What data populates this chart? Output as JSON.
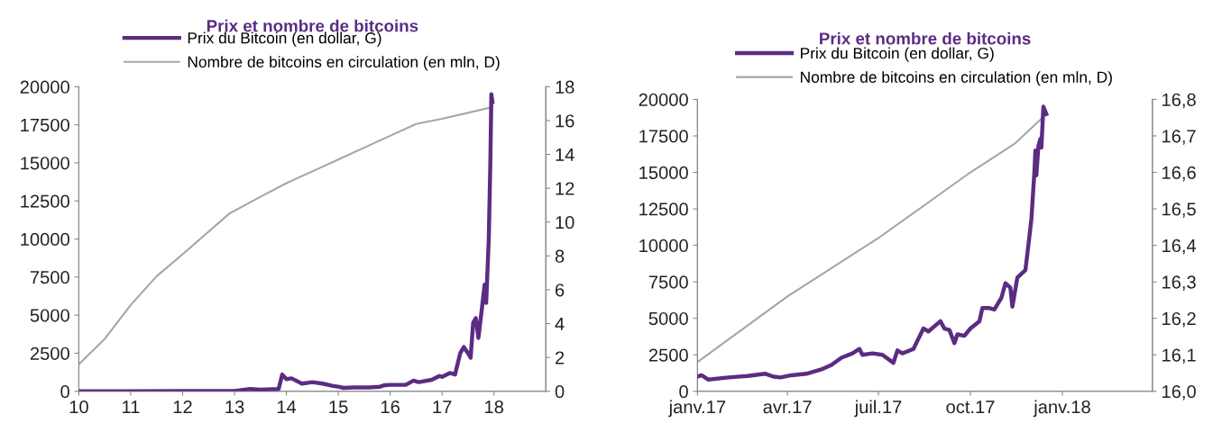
{
  "chart_data": [
    {
      "type": "line",
      "title": "Prix et nombre de bitcoins",
      "legend": "top",
      "grid": false,
      "xlim": [
        10,
        19
      ],
      "xticks": [
        10,
        11,
        12,
        13,
        14,
        15,
        16,
        17,
        18
      ],
      "ylim": [
        0,
        20000
      ],
      "yticks": [
        0,
        2500,
        5000,
        7500,
        10000,
        12500,
        15000,
        17500,
        20000
      ],
      "y2lim": [
        0,
        18
      ],
      "y2ticks": [
        0,
        2,
        4,
        6,
        8,
        10,
        12,
        14,
        16,
        18
      ],
      "series": [
        {
          "name": "Prix du Bitcoin (en dollar, G)",
          "color": "#5b2c83",
          "x": [
            10,
            11,
            12,
            13.0,
            13.3,
            13.5,
            13.85,
            13.92,
            14.0,
            14.1,
            14.3,
            14.5,
            14.7,
            14.9,
            15.0,
            15.1,
            15.3,
            15.6,
            15.8,
            15.9,
            16.0,
            16.3,
            16.45,
            16.55,
            16.8,
            16.95,
            17.0,
            17.15,
            17.25,
            17.35,
            17.42,
            17.5,
            17.55,
            17.6,
            17.65,
            17.7,
            17.78,
            17.82,
            17.85,
            17.9,
            17.93,
            17.95,
            17.97
          ],
          "values": [
            0,
            0,
            10,
            20,
            150,
            100,
            150,
            1100,
            800,
            850,
            500,
            600,
            500,
            350,
            300,
            220,
            250,
            250,
            300,
            400,
            420,
            420,
            700,
            600,
            750,
            1000,
            950,
            1200,
            1100,
            2500,
            2900,
            2500,
            2200,
            4500,
            4800,
            3500,
            5800,
            7000,
            5800,
            10000,
            15000,
            19500,
            19000
          ]
        },
        {
          "name": "Nombre de bitcoins en circulation (en mln, D)",
          "color": "#a6a6a6",
          "axis": "y2",
          "x": [
            10,
            10.5,
            11,
            11.5,
            12,
            12.9,
            13.5,
            14.0,
            14.5,
            15,
            16,
            16.5,
            17,
            17.97
          ],
          "values": [
            1.6,
            3.1,
            5.1,
            6.8,
            8.1,
            10.5,
            11.5,
            12.3,
            13.0,
            13.7,
            15.1,
            15.8,
            16.1,
            16.8
          ]
        }
      ]
    },
    {
      "type": "line",
      "title": "Prix et nombre de bitcoins",
      "legend": "top",
      "grid": false,
      "xlim": [
        "2017-01-01",
        "2018-04-01"
      ],
      "xticks": [
        {
          "value": "2017-01-01",
          "label": "janv.17"
        },
        {
          "value": "2017-04-01",
          "label": "avr.17"
        },
        {
          "value": "2017-07-01",
          "label": "juil.17"
        },
        {
          "value": "2017-10-01",
          "label": "oct.17"
        },
        {
          "value": "2018-01-01",
          "label": "janv.18"
        }
      ],
      "ylim": [
        0,
        20000
      ],
      "yticks": [
        0,
        2500,
        5000,
        7500,
        10000,
        12500,
        15000,
        17500,
        20000
      ],
      "y2lim": [
        16.0,
        16.8
      ],
      "y2ticks": [
        {
          "value": 16.0,
          "label": "16,0"
        },
        {
          "value": 16.1,
          "label": "16,1"
        },
        {
          "value": 16.2,
          "label": "16,2"
        },
        {
          "value": 16.3,
          "label": "16,3"
        },
        {
          "value": 16.4,
          "label": "16,4"
        },
        {
          "value": 16.5,
          "label": "16,5"
        },
        {
          "value": 16.6,
          "label": "16,6"
        },
        {
          "value": 16.7,
          "label": "16,7"
        },
        {
          "value": 16.8,
          "label": "16,8"
        }
      ],
      "series": [
        {
          "name": "Prix du Bitcoin (en dollar, G)",
          "color": "#5b2c83",
          "x": [
            "2017-01-01",
            "2017-01-05",
            "2017-01-12",
            "2017-02-01",
            "2017-02-20",
            "2017-03-10",
            "2017-03-18",
            "2017-03-25",
            "2017-04-05",
            "2017-04-20",
            "2017-05-05",
            "2017-05-15",
            "2017-05-25",
            "2017-06-05",
            "2017-06-12",
            "2017-06-15",
            "2017-06-25",
            "2017-07-05",
            "2017-07-16",
            "2017-07-20",
            "2017-07-25",
            "2017-08-05",
            "2017-08-15",
            "2017-08-20",
            "2017-09-01",
            "2017-09-05",
            "2017-09-10",
            "2017-09-15",
            "2017-09-18",
            "2017-09-25",
            "2017-10-01",
            "2017-10-10",
            "2017-10-13",
            "2017-10-20",
            "2017-10-25",
            "2017-11-01",
            "2017-11-05",
            "2017-11-10",
            "2017-11-12",
            "2017-11-17",
            "2017-11-25",
            "2017-11-28",
            "2017-12-01",
            "2017-12-04",
            "2017-12-05",
            "2017-12-06",
            "2017-12-08",
            "2017-12-10",
            "2017-12-11",
            "2017-12-13",
            "2017-12-16"
          ],
          "values": [
            1000,
            1100,
            800,
            950,
            1050,
            1200,
            1000,
            950,
            1100,
            1200,
            1500,
            1800,
            2300,
            2600,
            2900,
            2500,
            2600,
            2500,
            1950,
            2800,
            2600,
            2900,
            4300,
            4100,
            4800,
            4300,
            4200,
            3300,
            3900,
            3800,
            4300,
            4800,
            5700,
            5700,
            5600,
            6400,
            7400,
            7100,
            5800,
            7800,
            8300,
            10000,
            11800,
            15000,
            16500,
            14800,
            16800,
            17300,
            16700,
            19500,
            19000
          ]
        },
        {
          "name": "Nombre de bitcoins en circulation (en mln, D)",
          "color": "#a6a6a6",
          "axis": "y2",
          "x": [
            "2017-01-01",
            "2017-04-01",
            "2017-07-01",
            "2017-10-01",
            "2017-11-15",
            "2017-12-16"
          ],
          "values": [
            16.08,
            16.26,
            16.42,
            16.6,
            16.68,
            16.76
          ]
        }
      ]
    }
  ]
}
